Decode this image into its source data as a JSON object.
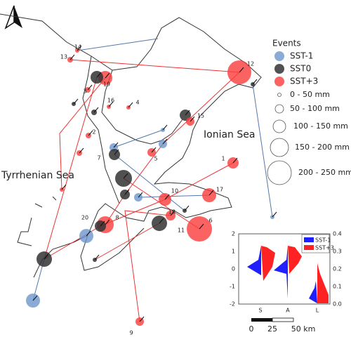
{
  "legend": {
    "title": "Events",
    "items": [
      "SST-1",
      "SST0",
      "SST+3"
    ],
    "sizes": [
      "0 - 50 mm",
      "50 - 100 mm",
      "100 - 150 mm",
      "150 - 200 mm",
      "200 - 250 mm"
    ]
  },
  "seas": [
    "Ionian Sea",
    "Tyrrhenian Sea"
  ],
  "site_labels": [
    "1",
    "2",
    "3",
    "4",
    "5",
    "6",
    "7",
    "8",
    "9",
    "10",
    "11",
    "12",
    "13",
    "14",
    "15",
    "16",
    "17",
    "18",
    "19",
    "20"
  ],
  "inset": {
    "legend": [
      "SST-1",
      "SST+3"
    ],
    "left_ticks": [
      "-2",
      "-1",
      "0",
      "1",
      "2"
    ],
    "right_ticks": [
      "0.0",
      "0.1",
      "0.2",
      "0.3",
      "0.4"
    ],
    "categories": [
      "S",
      "A",
      "L"
    ]
  },
  "scale_bar": [
    "0",
    "25",
    "50 km"
  ]
}
